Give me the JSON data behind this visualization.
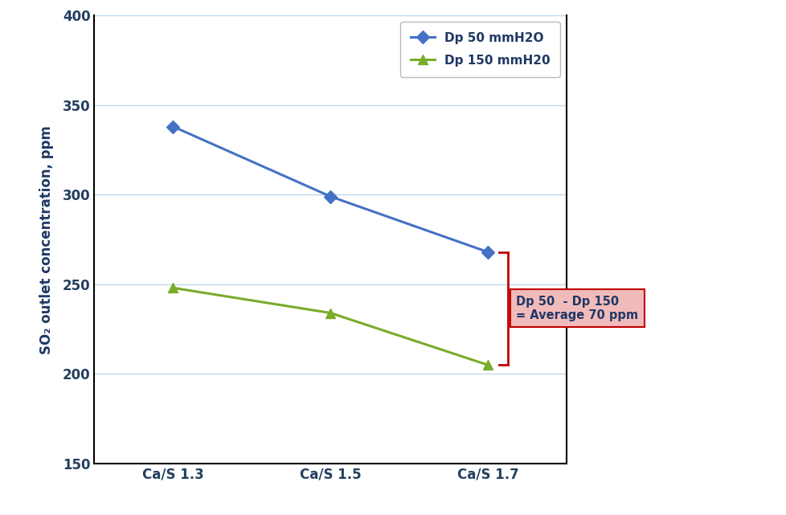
{
  "x_labels": [
    "Ca/S 1.3",
    "Ca/S 1.5",
    "Ca/S 1.7"
  ],
  "x_values": [
    0,
    1,
    2
  ],
  "series1_label": "Dp 50 mmH2O",
  "series1_values": [
    338,
    299,
    268
  ],
  "series1_color": "#4472C4",
  "series2_label": "Dp 150 mmH20",
  "series2_values": [
    248,
    234,
    205
  ],
  "series2_color": "#7AAB2B",
  "ylabel": "SO₂ outlet concentration, ppm",
  "ylim": [
    150,
    400
  ],
  "yticks": [
    150,
    200,
    250,
    300,
    350,
    400
  ],
  "grid_color": "#BDD7EE",
  "annotation_text": "Dp 50  - Dp 150\n= Average 70 ppm",
  "annotation_box_color": "#F2BBBB",
  "annotation_box_edge": "#C00000",
  "bracket_color": "#C00000",
  "background_color": "#FFFFFF",
  "axis_label_color": "#1F3864",
  "tick_label_color": "#243F60"
}
